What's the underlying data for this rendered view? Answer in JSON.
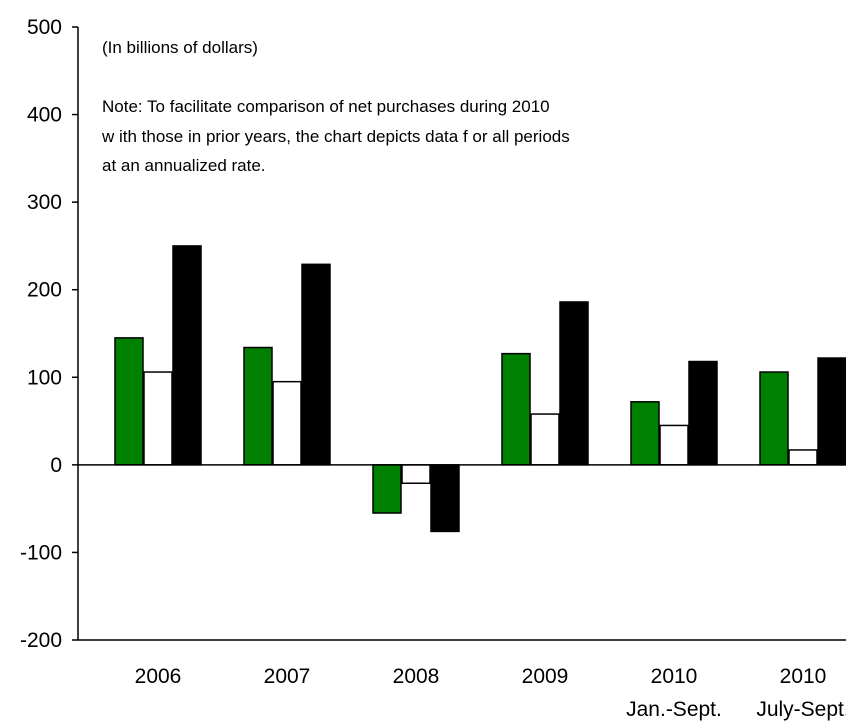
{
  "chart_data": {
    "type": "bar",
    "unit_note": "(In billions of dollars)",
    "note_lines": [
      "Note: To facilitate comparison of net purchases during 2010",
      "w ith those in prior years, the chart depicts data f or all periods",
      "at an annualized rate."
    ],
    "categories": [
      "2006",
      "2007",
      "2008",
      "2009",
      "2010",
      "2010"
    ],
    "category_sublabels": [
      "",
      "",
      "",
      "",
      "Jan.-Sept.",
      "July-Sept."
    ],
    "series": [
      {
        "color": "#008000",
        "values": [
          145,
          134,
          -55,
          127,
          72,
          106
        ]
      },
      {
        "color": "#ffffff",
        "values": [
          106,
          95,
          -21,
          58,
          45,
          17
        ]
      },
      {
        "color": "#000000",
        "values": [
          250,
          229,
          -76,
          186,
          118,
          122
        ]
      }
    ],
    "ylim": [
      -200,
      500
    ],
    "yticks": [
      -200,
      -100,
      0,
      100,
      200,
      300,
      400,
      500
    ],
    "ytick_labels": [
      "-200",
      "-100",
      "0",
      "100",
      "200",
      "300",
      "400",
      "500"
    ],
    "xlabel": "",
    "ylabel": "",
    "grid": false,
    "legend": false
  }
}
